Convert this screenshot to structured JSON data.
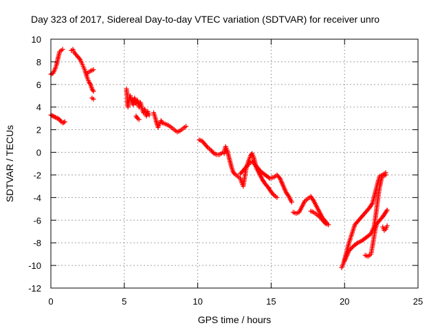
{
  "chart_data": {
    "type": "scatter",
    "title": "Day 323 of 2017, Sidereal Day-to-day VTEC variation (SDTVAR) for receiver unro",
    "xlabel": "GPS time / hours",
    "ylabel": "SDTVAR / TECUs",
    "xlim": [
      0,
      25
    ],
    "ylim": [
      -12,
      10
    ],
    "xticks": [
      0,
      5,
      10,
      15,
      20,
      25
    ],
    "yticks": [
      -12,
      -10,
      -8,
      -6,
      -4,
      -2,
      0,
      2,
      4,
      6,
      8,
      10
    ],
    "grid": true,
    "marker": "plus",
    "color": "#ff0000",
    "series": [
      {
        "name": "SDTVAR",
        "segments": [
          [
            [
              0.0,
              6.9
            ],
            [
              0.15,
              7.0
            ],
            [
              0.3,
              7.4
            ],
            [
              0.4,
              7.8
            ],
            [
              0.5,
              8.4
            ],
            [
              0.6,
              8.9
            ],
            [
              0.7,
              9.0
            ],
            [
              0.8,
              9.1
            ]
          ],
          [
            [
              0.0,
              3.3
            ],
            [
              0.15,
              3.2
            ],
            [
              0.3,
              3.1
            ],
            [
              0.45,
              3.0
            ],
            [
              0.6,
              2.9
            ],
            [
              0.7,
              2.7
            ],
            [
              0.8,
              2.6
            ],
            [
              0.95,
              2.7
            ]
          ],
          [
            [
              1.4,
              9.0
            ],
            [
              1.5,
              9.1
            ],
            [
              1.6,
              8.8
            ],
            [
              1.8,
              8.5
            ],
            [
              2.0,
              8.2
            ],
            [
              2.1,
              7.9
            ],
            [
              2.2,
              7.6
            ],
            [
              2.3,
              7.3
            ],
            [
              2.4,
              6.9
            ],
            [
              2.5,
              6.5
            ],
            [
              2.6,
              6.2
            ],
            [
              2.7,
              6.0
            ],
            [
              2.8,
              5.6
            ],
            [
              2.9,
              5.4
            ]
          ],
          [
            [
              2.5,
              7.0
            ],
            [
              2.7,
              7.2
            ],
            [
              2.9,
              7.3
            ]
          ],
          [
            [
              2.8,
              4.8
            ],
            [
              2.9,
              4.7
            ]
          ],
          [
            [
              5.15,
              5.6
            ],
            [
              5.2,
              5.0
            ],
            [
              5.2,
              4.5
            ],
            [
              5.25,
              4.0
            ],
            [
              5.3,
              4.6
            ],
            [
              5.4,
              5.0
            ],
            [
              5.5,
              4.5
            ],
            [
              5.6,
              4.2
            ],
            [
              5.7,
              4.8
            ],
            [
              5.8,
              4.3
            ],
            [
              5.9,
              4.6
            ],
            [
              6.0,
              4.0
            ],
            [
              6.1,
              4.4
            ],
            [
              6.2,
              3.9
            ],
            [
              6.3,
              3.5
            ],
            [
              6.4,
              3.8
            ],
            [
              6.5,
              3.2
            ],
            [
              6.6,
              3.6
            ],
            [
              6.7,
              3.3
            ]
          ],
          [
            [
              5.8,
              3.2
            ],
            [
              5.9,
              3.0
            ],
            [
              6.0,
              2.9
            ]
          ],
          [
            [
              7.0,
              3.5
            ],
            [
              7.1,
              3.1
            ],
            [
              7.2,
              2.6
            ],
            [
              7.3,
              2.2
            ],
            [
              7.4,
              2.5
            ],
            [
              7.5,
              2.8
            ],
            [
              7.6,
              2.6
            ],
            [
              7.8,
              2.5
            ],
            [
              8.0,
              2.4
            ],
            [
              8.2,
              2.2
            ],
            [
              8.4,
              2.0
            ],
            [
              8.6,
              1.8
            ],
            [
              8.8,
              1.9
            ],
            [
              9.0,
              2.1
            ],
            [
              9.2,
              2.3
            ]
          ],
          [
            [
              10.1,
              1.1
            ],
            [
              10.3,
              1.0
            ],
            [
              10.5,
              0.7
            ],
            [
              10.7,
              0.4
            ],
            [
              10.9,
              0.2
            ],
            [
              11.1,
              -0.1
            ],
            [
              11.3,
              -0.2
            ],
            [
              11.5,
              -0.2
            ],
            [
              11.7,
              0.0
            ],
            [
              11.8,
              -0.1
            ],
            [
              11.9,
              0.5
            ],
            [
              12.0,
              0.2
            ],
            [
              12.1,
              -0.3
            ],
            [
              12.2,
              -0.8
            ],
            [
              12.3,
              -1.3
            ],
            [
              12.4,
              -1.7
            ],
            [
              12.5,
              -1.9
            ],
            [
              12.7,
              -2.1
            ],
            [
              12.9,
              -2.3
            ],
            [
              13.0,
              -2.7
            ],
            [
              13.1,
              -3.0
            ],
            [
              13.2,
              -2.2
            ],
            [
              13.3,
              -1.4
            ],
            [
              13.4,
              -1.0
            ],
            [
              13.5,
              -0.6
            ],
            [
              13.6,
              -0.3
            ],
            [
              13.7,
              -0.1
            ],
            [
              13.8,
              -0.4
            ],
            [
              13.9,
              -0.9
            ],
            [
              14.0,
              -1.4
            ],
            [
              14.2,
              -1.9
            ],
            [
              14.4,
              -2.4
            ],
            [
              14.6,
              -2.8
            ],
            [
              14.8,
              -3.1
            ],
            [
              15.0,
              -3.5
            ],
            [
              15.2,
              -3.8
            ],
            [
              15.4,
              -4.0
            ]
          ],
          [
            [
              12.9,
              -1.9
            ],
            [
              13.1,
              -1.6
            ],
            [
              13.3,
              -1.3
            ],
            [
              13.5,
              -1.0
            ],
            [
              13.7,
              -0.8
            ],
            [
              13.9,
              -1.1
            ],
            [
              14.1,
              -1.4
            ],
            [
              14.3,
              -1.7
            ],
            [
              14.6,
              -2.0
            ],
            [
              14.9,
              -2.3
            ],
            [
              15.2,
              -2.2
            ],
            [
              15.4,
              -2.0
            ],
            [
              15.6,
              -2.3
            ],
            [
              15.8,
              -2.9
            ],
            [
              16.0,
              -3.5
            ],
            [
              16.2,
              -3.9
            ],
            [
              16.4,
              -4.4
            ]
          ],
          [
            [
              16.5,
              -5.3
            ],
            [
              16.7,
              -5.4
            ],
            [
              16.9,
              -5.3
            ],
            [
              17.1,
              -4.8
            ],
            [
              17.3,
              -4.3
            ],
            [
              17.5,
              -4.1
            ],
            [
              17.7,
              -3.9
            ],
            [
              17.9,
              -4.3
            ],
            [
              18.1,
              -4.8
            ],
            [
              18.3,
              -5.3
            ],
            [
              18.5,
              -5.8
            ],
            [
              18.7,
              -6.1
            ],
            [
              18.8,
              -6.3
            ]
          ],
          [
            [
              17.7,
              -5.2
            ],
            [
              17.9,
              -5.3
            ],
            [
              18.1,
              -5.5
            ],
            [
              18.3,
              -5.7
            ],
            [
              18.5,
              -6.0
            ],
            [
              18.7,
              -6.3
            ],
            [
              18.9,
              -6.4
            ]
          ],
          [
            [
              19.8,
              -10.2
            ],
            [
              19.9,
              -9.9
            ],
            [
              20.0,
              -9.5
            ],
            [
              20.1,
              -9.0
            ],
            [
              20.2,
              -8.5
            ],
            [
              20.3,
              -8.0
            ],
            [
              20.4,
              -7.6
            ],
            [
              20.5,
              -7.2
            ],
            [
              20.6,
              -6.8
            ],
            [
              20.7,
              -6.4
            ],
            [
              20.9,
              -6.1
            ],
            [
              21.1,
              -5.8
            ],
            [
              21.3,
              -5.5
            ],
            [
              21.5,
              -5.2
            ],
            [
              21.7,
              -4.9
            ],
            [
              21.9,
              -4.5
            ],
            [
              22.0,
              -4.0
            ],
            [
              22.1,
              -3.5
            ],
            [
              22.2,
              -3.0
            ],
            [
              22.3,
              -2.5
            ],
            [
              22.4,
              -2.1
            ],
            [
              22.6,
              -2.0
            ],
            [
              22.8,
              -1.8
            ]
          ],
          [
            [
              20.0,
              -9.6
            ],
            [
              20.3,
              -8.7
            ],
            [
              20.6,
              -8.3
            ],
            [
              20.9,
              -8.0
            ],
            [
              21.2,
              -7.8
            ],
            [
              21.5,
              -7.5
            ],
            [
              21.8,
              -7.2
            ],
            [
              22.0,
              -6.6
            ],
            [
              22.1,
              -5.8
            ],
            [
              22.2,
              -4.8
            ],
            [
              22.3,
              -3.8
            ],
            [
              22.4,
              -3.0
            ],
            [
              22.5,
              -2.4
            ],
            [
              22.6,
              -2.1
            ],
            [
              22.8,
              -2.0
            ]
          ],
          [
            [
              21.4,
              -9.1
            ],
            [
              21.6,
              -9.2
            ],
            [
              21.8,
              -9.0
            ],
            [
              21.9,
              -8.3
            ],
            [
              22.0,
              -7.5
            ],
            [
              22.1,
              -6.8
            ],
            [
              22.2,
              -6.3
            ],
            [
              22.4,
              -6.0
            ],
            [
              22.6,
              -5.7
            ],
            [
              22.8,
              -5.3
            ],
            [
              22.9,
              -5.1
            ]
          ],
          [
            [
              22.6,
              -6.6
            ],
            [
              22.7,
              -6.9
            ],
            [
              22.8,
              -6.8
            ],
            [
              22.9,
              -6.5
            ]
          ]
        ]
      }
    ]
  }
}
